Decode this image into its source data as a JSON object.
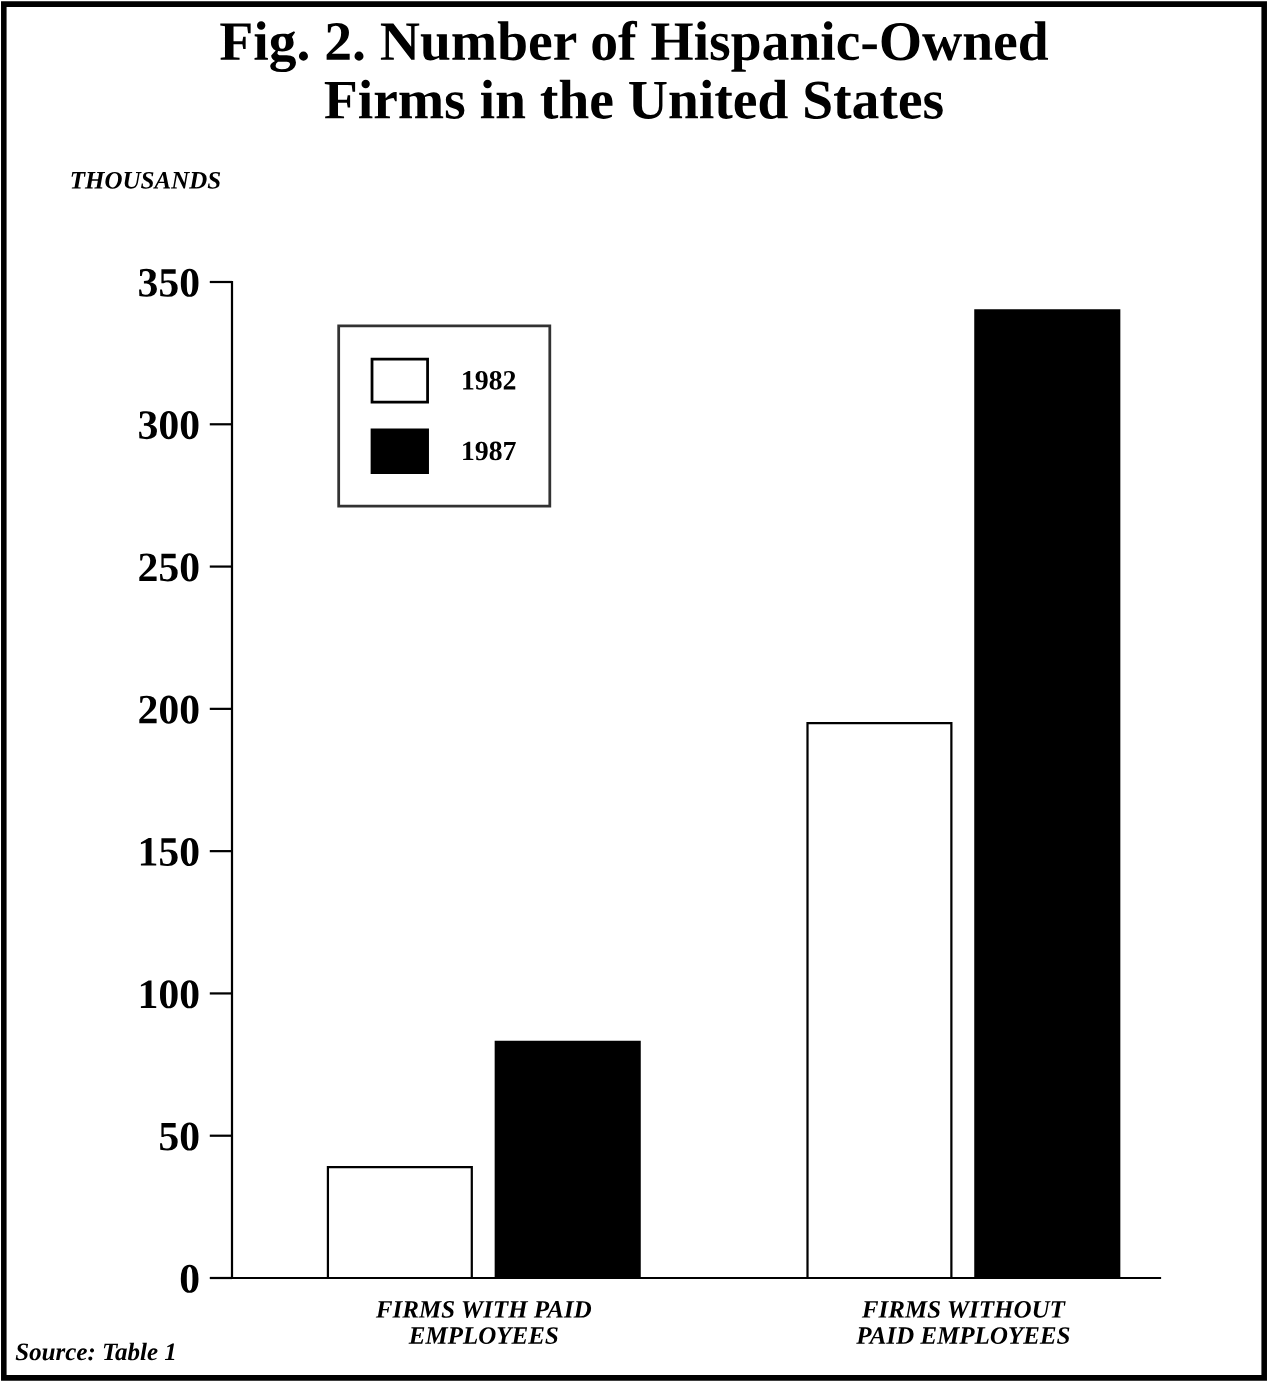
{
  "chart_data": {
    "type": "bar",
    "title": "Fig. 2. Number of Hispanic-Owned\nFirms in the United States",
    "ylabel": "THOUSANDS",
    "categories": [
      "FIRMS WITH PAID\nEMPLOYEES",
      "FIRMS WITHOUT\nPAID EMPLOYEES"
    ],
    "series": [
      {
        "name": "1982",
        "color": "#ffffff",
        "values": [
          39,
          195
        ]
      },
      {
        "name": "1987",
        "color": "#000000",
        "values": [
          83,
          340
        ]
      }
    ],
    "ylim": [
      0,
      350
    ],
    "yticks": [
      0,
      50,
      100,
      150,
      200,
      250,
      300,
      350
    ],
    "grid": false,
    "legend": "top left",
    "annotations": [
      "Source: Table 1"
    ]
  }
}
